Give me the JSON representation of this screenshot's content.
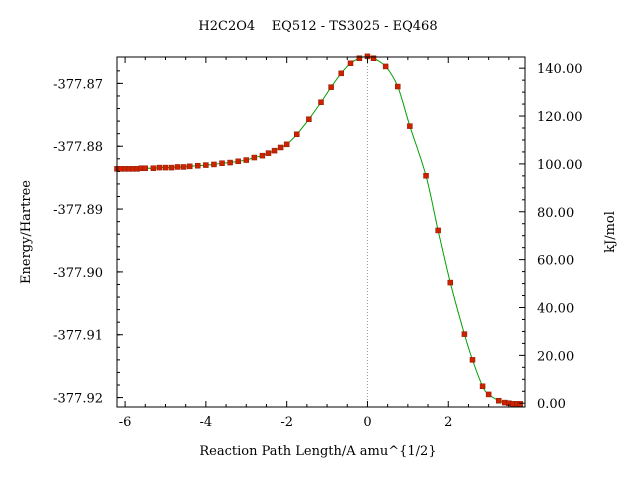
{
  "chart_data": {
    "type": "line",
    "title": "H2C2O4    EQ512 - TS3025 - EQ468",
    "xlabel": "Reaction Path Length/A amu^{1/2}",
    "ylabel_left": "Energy/Hartree",
    "ylabel_right": "kJ/mol",
    "xlim": [
      -6.2,
      3.9
    ],
    "ylim_left": [
      -377.9215,
      -377.8658
    ],
    "x_ticks": [
      -6,
      -4,
      -2,
      0,
      2
    ],
    "x_tick_labels": [
      "-6",
      "-4",
      "-2",
      "0",
      "2"
    ],
    "y_left_ticks": [
      -377.87,
      -377.88,
      -377.89,
      -377.9,
      -377.91,
      -377.92
    ],
    "y_left_tick_labels": [
      "-377.87",
      "-377.88",
      "-377.89",
      "-377.90",
      "-377.91",
      "-377.92"
    ],
    "y_right_ticks": [
      0,
      20,
      40,
      60,
      80,
      100,
      120,
      140
    ],
    "y_right_tick_labels": [
      "0.00",
      "20.00",
      "40.00",
      "60.00",
      "80.00",
      "100.00",
      "120.00",
      "140.00"
    ],
    "kj_per_hartree": 2625.5,
    "y_right_zero_hartree": -377.9209,
    "ts_marker_x": 0,
    "grid": false,
    "line_color": "#00a000",
    "marker_color": "#cc2200",
    "ts_line_color": "#999999",
    "series": [
      {
        "x": [
          -6.2,
          -6.1,
          -6.0,
          -5.9,
          -5.8,
          -5.7,
          -5.6,
          -5.5,
          -5.3,
          -5.15,
          -5.0,
          -4.85,
          -4.7,
          -4.55,
          -4.4,
          -4.2,
          -4.0,
          -3.8,
          -3.6,
          -3.4,
          -3.2,
          -3.0,
          -2.8,
          -2.6,
          -2.45,
          -2.3,
          -2.15,
          -2.0,
          -1.75,
          -1.45,
          -1.15,
          -0.9,
          -0.65,
          -0.42,
          -0.2,
          0.0,
          0.15,
          0.45,
          0.75,
          1.05,
          1.45,
          1.75,
          2.05,
          2.4,
          2.6,
          2.85,
          3.0,
          3.25,
          3.4,
          3.5,
          3.6,
          3.7,
          3.78
        ],
        "y": [
          -377.8836,
          -377.8836,
          -377.8836,
          -377.8836,
          -377.8836,
          -377.8836,
          -377.8835,
          -377.8835,
          -377.8835,
          -377.8834,
          -377.8834,
          -377.8834,
          -377.8833,
          -377.8833,
          -377.8832,
          -377.8831,
          -377.883,
          -377.8829,
          -377.8827,
          -377.8826,
          -377.8824,
          -377.8822,
          -377.8818,
          -377.8815,
          -377.8811,
          -377.8807,
          -377.8802,
          -377.8797,
          -377.8781,
          -377.8757,
          -377.873,
          -377.8706,
          -377.8684,
          -377.8668,
          -377.866,
          -377.8657,
          -377.866,
          -377.8673,
          -377.8705,
          -377.8768,
          -377.8847,
          -377.8934,
          -377.9017,
          -377.9099,
          -377.914,
          -377.9182,
          -377.9195,
          -377.9205,
          -377.9208,
          -377.9209,
          -377.921,
          -377.921,
          -377.921
        ]
      }
    ]
  }
}
